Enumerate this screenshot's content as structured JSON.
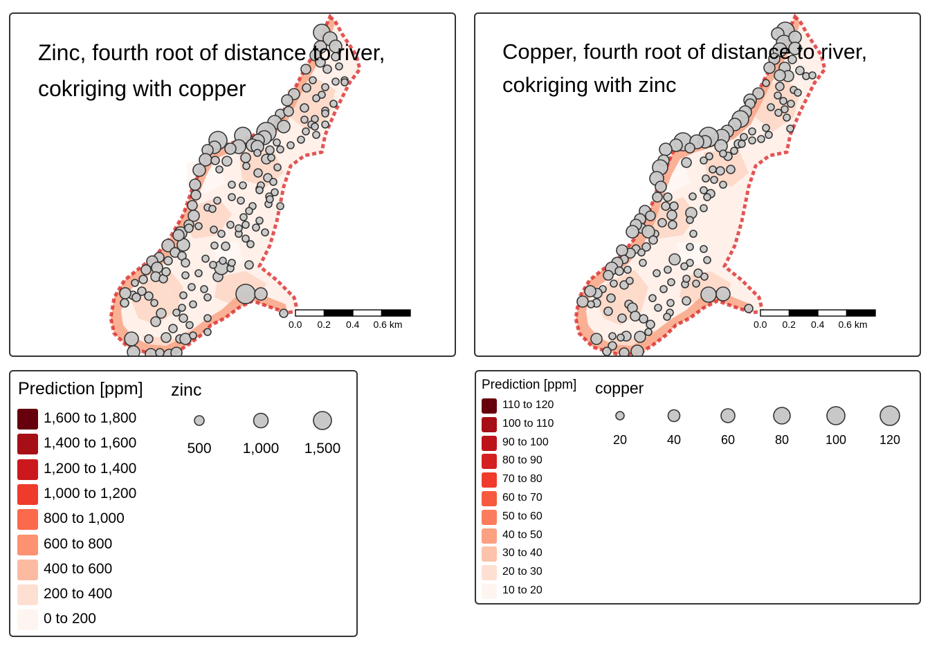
{
  "maps": [
    {
      "title_line1": "Zinc, fourth root of distance to river,",
      "title_line2": "cokriging with copper"
    },
    {
      "title_line1": "Copper, fourth root of distance to river,",
      "title_line2": " cokriging with zinc"
    }
  ],
  "scalebar": {
    "ticks": [
      "0.0",
      "0.2",
      "0.4",
      "0.6 km"
    ]
  },
  "legend_zinc": {
    "fill_title": "Prediction [ppm]",
    "size_title": "zinc",
    "classes": [
      "1,600 to 1,800",
      "1,400 to 1,600",
      "1,200 to 1,400",
      "1,000 to 1,200",
      "800 to 1,000",
      "600 to 800",
      "400 to 600",
      "200 to 400",
      "0 to 200"
    ],
    "colors": [
      "#67000d",
      "#a50f15",
      "#cb181d",
      "#ef3b2c",
      "#fb6a4a",
      "#fc9272",
      "#fcbba1",
      "#fee0d2",
      "#fff5f0"
    ],
    "sizes": [
      "500",
      "1,000",
      "1,500"
    ]
  },
  "legend_copper": {
    "fill_title": "Prediction [ppm]",
    "size_title": "copper",
    "classes": [
      "110 to 120",
      "100 to 110",
      "90 to 100",
      "80 to 90",
      "70 to 80",
      "60 to 70",
      "50 to 60",
      "40 to 50",
      "30 to 40",
      "20 to 30",
      "10 to 20"
    ],
    "colors": [
      "#67000d",
      "#a50f15",
      "#bc141a",
      "#d42020",
      "#ef3b2c",
      "#f7593f",
      "#fb7c5c",
      "#fca082",
      "#fcc2aa",
      "#fee0d2",
      "#fff5f0"
    ],
    "sizes": [
      "20",
      "40",
      "60",
      "80",
      "100",
      "120"
    ]
  },
  "colors": {
    "point_fill": "#c8c8c8",
    "point_stroke": "#333333",
    "frame": "#333333"
  }
}
